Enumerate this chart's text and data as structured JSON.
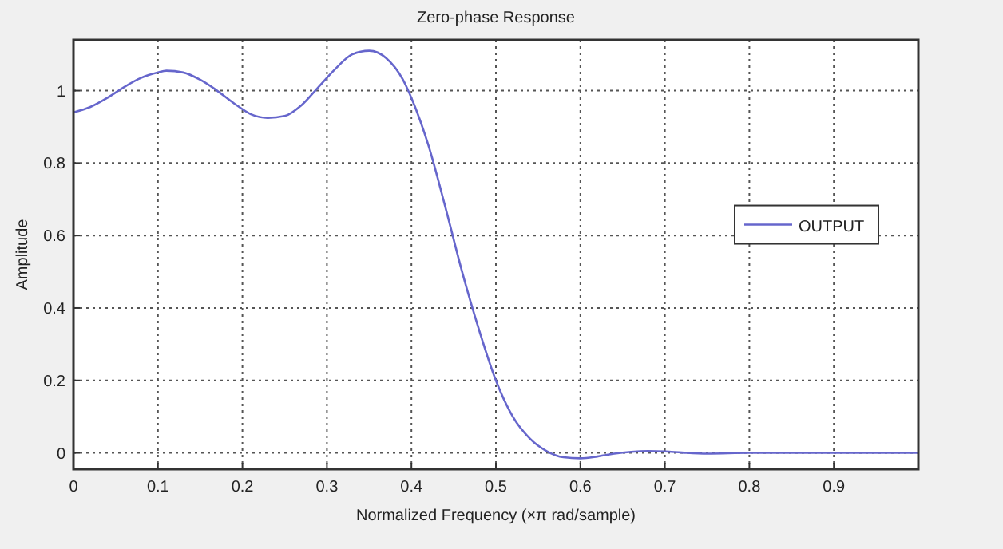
{
  "chart_data": {
    "type": "line",
    "title": "Zero-phase Response",
    "xlabel": "Normalized Frequency (×π rad/sample)",
    "ylabel": "Amplitude",
    "xlim": [
      0,
      1
    ],
    "ylim": [
      -0.045,
      1.14
    ],
    "xticks": [
      0,
      0.1,
      0.2,
      0.3,
      0.4,
      0.5,
      0.6,
      0.7,
      0.8,
      0.9
    ],
    "yticks": [
      0,
      0.2,
      0.4,
      0.6,
      0.8,
      1
    ],
    "grid": true,
    "legend": "right",
    "line_style": "solid",
    "series": [
      {
        "name": "OUTPUT",
        "color": "#6666cc",
        "x": [
          0,
          0.02,
          0.04,
          0.06,
          0.08,
          0.1,
          0.11,
          0.13,
          0.15,
          0.17,
          0.19,
          0.21,
          0.23,
          0.25,
          0.27,
          0.29,
          0.31,
          0.33,
          0.35,
          0.37,
          0.39,
          0.4,
          0.42,
          0.44,
          0.46,
          0.48,
          0.5,
          0.52,
          0.54,
          0.56,
          0.58,
          0.6,
          0.62,
          0.64,
          0.66,
          0.68,
          0.7,
          0.72,
          0.75,
          0.8,
          0.85,
          0.9,
          0.95,
          1
        ],
        "values": [
          0.94,
          0.955,
          0.98,
          1.01,
          1.035,
          1.05,
          1.055,
          1.05,
          1.03,
          1.0,
          0.965,
          0.935,
          0.925,
          0.93,
          0.96,
          1.01,
          1.06,
          1.1,
          1.11,
          1.09,
          1.03,
          0.98,
          0.85,
          0.68,
          0.5,
          0.34,
          0.2,
          0.1,
          0.04,
          0.005,
          -0.012,
          -0.015,
          -0.01,
          -0.002,
          0.003,
          0.005,
          0.004,
          0.001,
          -0.002,
          0,
          0,
          0,
          0,
          0
        ]
      }
    ]
  }
}
